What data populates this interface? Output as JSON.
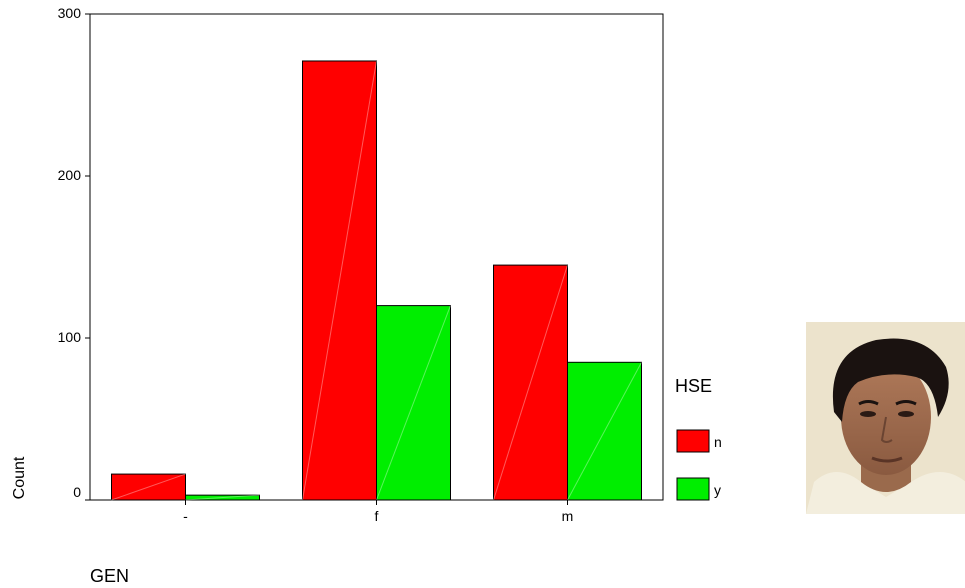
{
  "chart_data": {
    "type": "bar",
    "categories": [
      "-",
      "f",
      "m"
    ],
    "series": [
      {
        "name": "n",
        "color": "#ff0000",
        "values": [
          16,
          271,
          145
        ]
      },
      {
        "name": "y",
        "color": "#00ee00",
        "values": [
          3,
          120,
          85
        ]
      }
    ],
    "ylabel": "Count",
    "xlabel": "GEN",
    "ylim": [
      0,
      300
    ],
    "yticks": [
      0,
      100,
      200,
      300
    ],
    "legend_title": "HSE",
    "legend_position": "right",
    "grid": false
  }
}
